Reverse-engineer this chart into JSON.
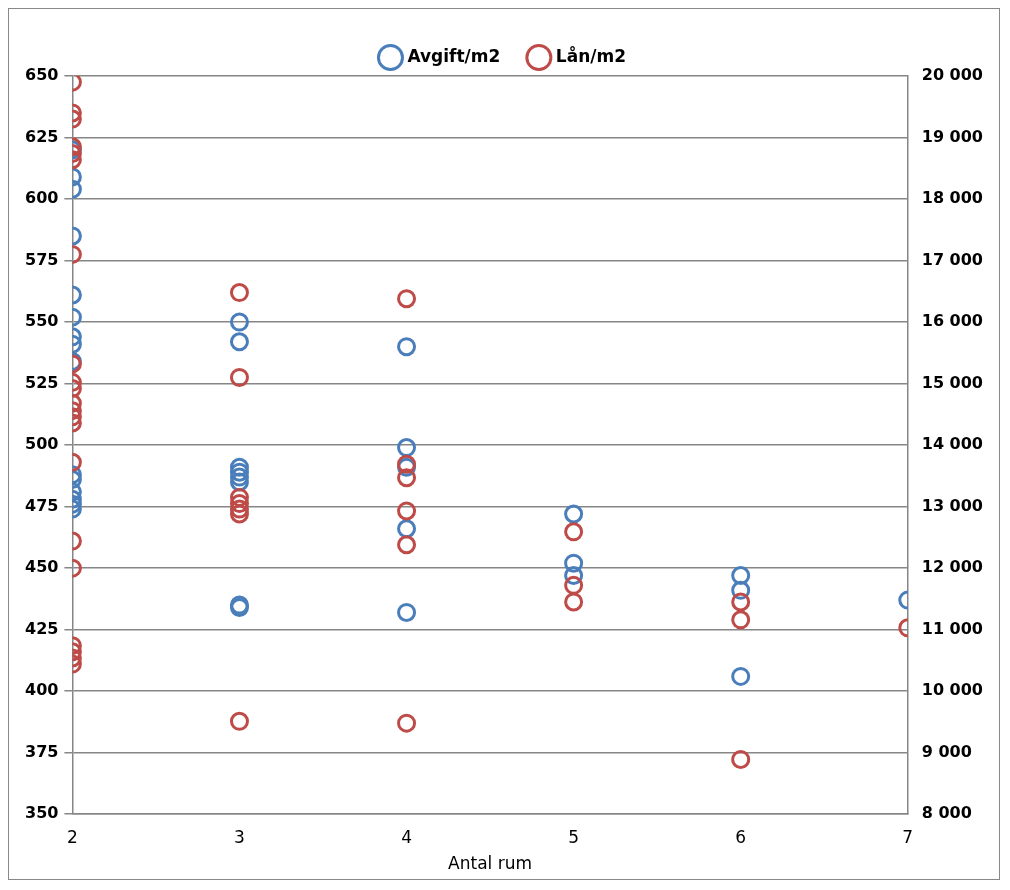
{
  "chart_data": {
    "type": "scatter",
    "xlabel": "Antal rum",
    "legend": "top",
    "grid": "y",
    "marker": "circle",
    "xlim": [
      2,
      7
    ],
    "xticks": [
      2,
      3,
      4,
      5,
      6,
      7
    ],
    "ylim": [
      350,
      650
    ],
    "yticks": [
      350,
      375,
      400,
      425,
      450,
      475,
      500,
      525,
      550,
      575,
      600,
      625,
      650
    ],
    "y2lim": [
      8000,
      20000
    ],
    "y2ticks": [
      {
        "value": 8000,
        "label": "8 000"
      },
      {
        "value": 9000,
        "label": "9 000"
      },
      {
        "value": 10000,
        "label": "10 000"
      },
      {
        "value": 11000,
        "label": "11 000"
      },
      {
        "value": 12000,
        "label": "12 000"
      },
      {
        "value": 13000,
        "label": "13 000"
      },
      {
        "value": 14000,
        "label": "14 000"
      },
      {
        "value": 15000,
        "label": "15 000"
      },
      {
        "value": 16000,
        "label": "16 000"
      },
      {
        "value": 17000,
        "label": "17 000"
      },
      {
        "value": 18000,
        "label": "18 000"
      },
      {
        "value": 19000,
        "label": "19 000"
      },
      {
        "value": 20000,
        "label": "20 000"
      }
    ],
    "series": [
      {
        "name": "Avgift/m2",
        "color": "#4a7ebb",
        "x": [
          2,
          2,
          2,
          2,
          2,
          2,
          2,
          2,
          2,
          2,
          2,
          2,
          2,
          2,
          2,
          3,
          3,
          3,
          3,
          3,
          3,
          3,
          3,
          4,
          4,
          4,
          4,
          4,
          5,
          5,
          5,
          6,
          6,
          6,
          7
        ],
        "values": [
          620,
          609,
          604,
          585,
          561,
          552,
          544,
          541,
          534,
          488,
          486,
          481,
          478,
          476,
          474,
          550,
          542,
          491,
          489,
          487,
          485,
          435,
          434,
          540,
          499,
          491,
          466,
          432,
          472,
          452,
          447,
          447,
          441,
          406,
          437
        ]
      },
      {
        "name": "Lån/m2",
        "color": "#be4b48",
        "axis": "y2",
        "x": [
          2,
          2,
          2,
          2,
          2,
          2,
          2,
          2,
          2,
          2,
          2,
          2,
          2,
          2,
          2,
          2,
          2,
          2,
          2,
          2,
          2,
          3,
          3,
          3,
          3,
          3,
          3,
          3,
          4,
          4,
          4,
          4,
          4,
          4,
          5,
          5,
          5,
          6,
          6,
          6,
          7
        ],
        "values": [
          19900,
          19400,
          19300,
          18850,
          18740,
          18640,
          17100,
          15320,
          15020,
          14920,
          14680,
          14560,
          14460,
          14360,
          13720,
          12440,
          12000,
          10740,
          10640,
          10540,
          10440,
          16480,
          15100,
          13150,
          13050,
          12960,
          12880,
          9510,
          16380,
          13690,
          13470,
          12930,
          12380,
          9480,
          12590,
          11720,
          11450,
          11450,
          11160,
          8890,
          11030
        ]
      }
    ]
  }
}
